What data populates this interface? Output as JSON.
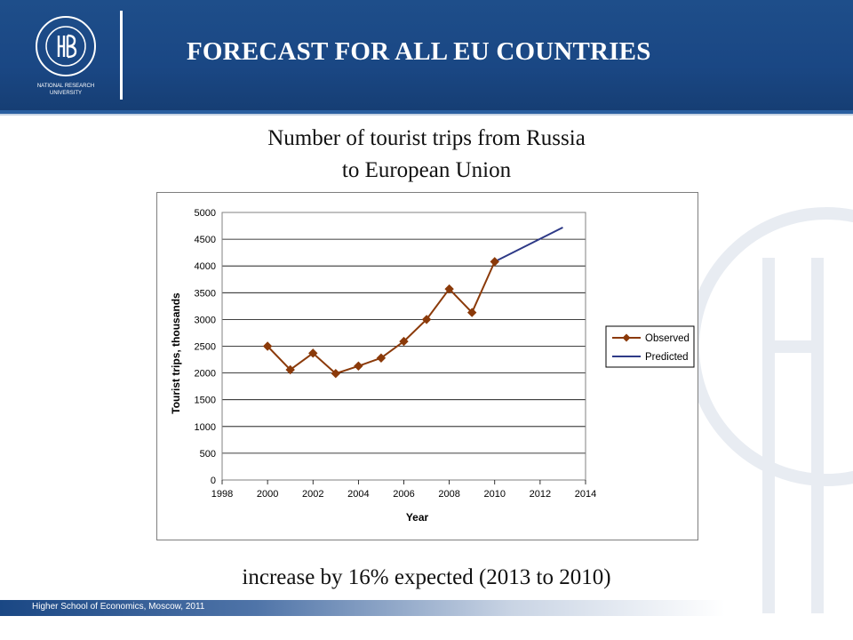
{
  "slide": {
    "title": "FORECAST FOR ALL EU COUNTRIES",
    "caption_line1": "Number of tourist trips from Russia",
    "caption_line2": "to European Union",
    "note": "increase by 16% expected (2013 to 2010)",
    "footer": "Higher School of Economics, Moscow, 2011",
    "logo_lines": [
      "NATIONAL RESEARCH",
      "UNIVERSITY"
    ]
  },
  "colors": {
    "header": "#1a4784",
    "observed": "#8b3a0a",
    "predicted": "#2e3a87"
  },
  "chart_data": {
    "type": "line",
    "title": "",
    "xlabel": "Year",
    "ylabel": "Tourist trips, thousands",
    "xlim": [
      1998,
      2014
    ],
    "ylim": [
      0,
      5000
    ],
    "x_ticks": [
      1998,
      2000,
      2002,
      2004,
      2006,
      2008,
      2010,
      2012,
      2014
    ],
    "y_ticks": [
      0,
      500,
      1000,
      1500,
      2000,
      2500,
      3000,
      3500,
      4000,
      4500,
      5000
    ],
    "grid": "horizontal",
    "legend": "right",
    "series": [
      {
        "name": "Observed",
        "marker": "diamond",
        "x": [
          2000,
          2001,
          2002,
          2003,
          2004,
          2005,
          2006,
          2007,
          2008,
          2009,
          2010
        ],
        "y": [
          2500,
          2060,
          2370,
          1990,
          2130,
          2280,
          2590,
          3000,
          3570,
          3130,
          4080
        ]
      },
      {
        "name": "Predicted",
        "marker": "none",
        "x": [
          2010,
          2013
        ],
        "y": [
          4080,
          4720
        ]
      }
    ]
  }
}
